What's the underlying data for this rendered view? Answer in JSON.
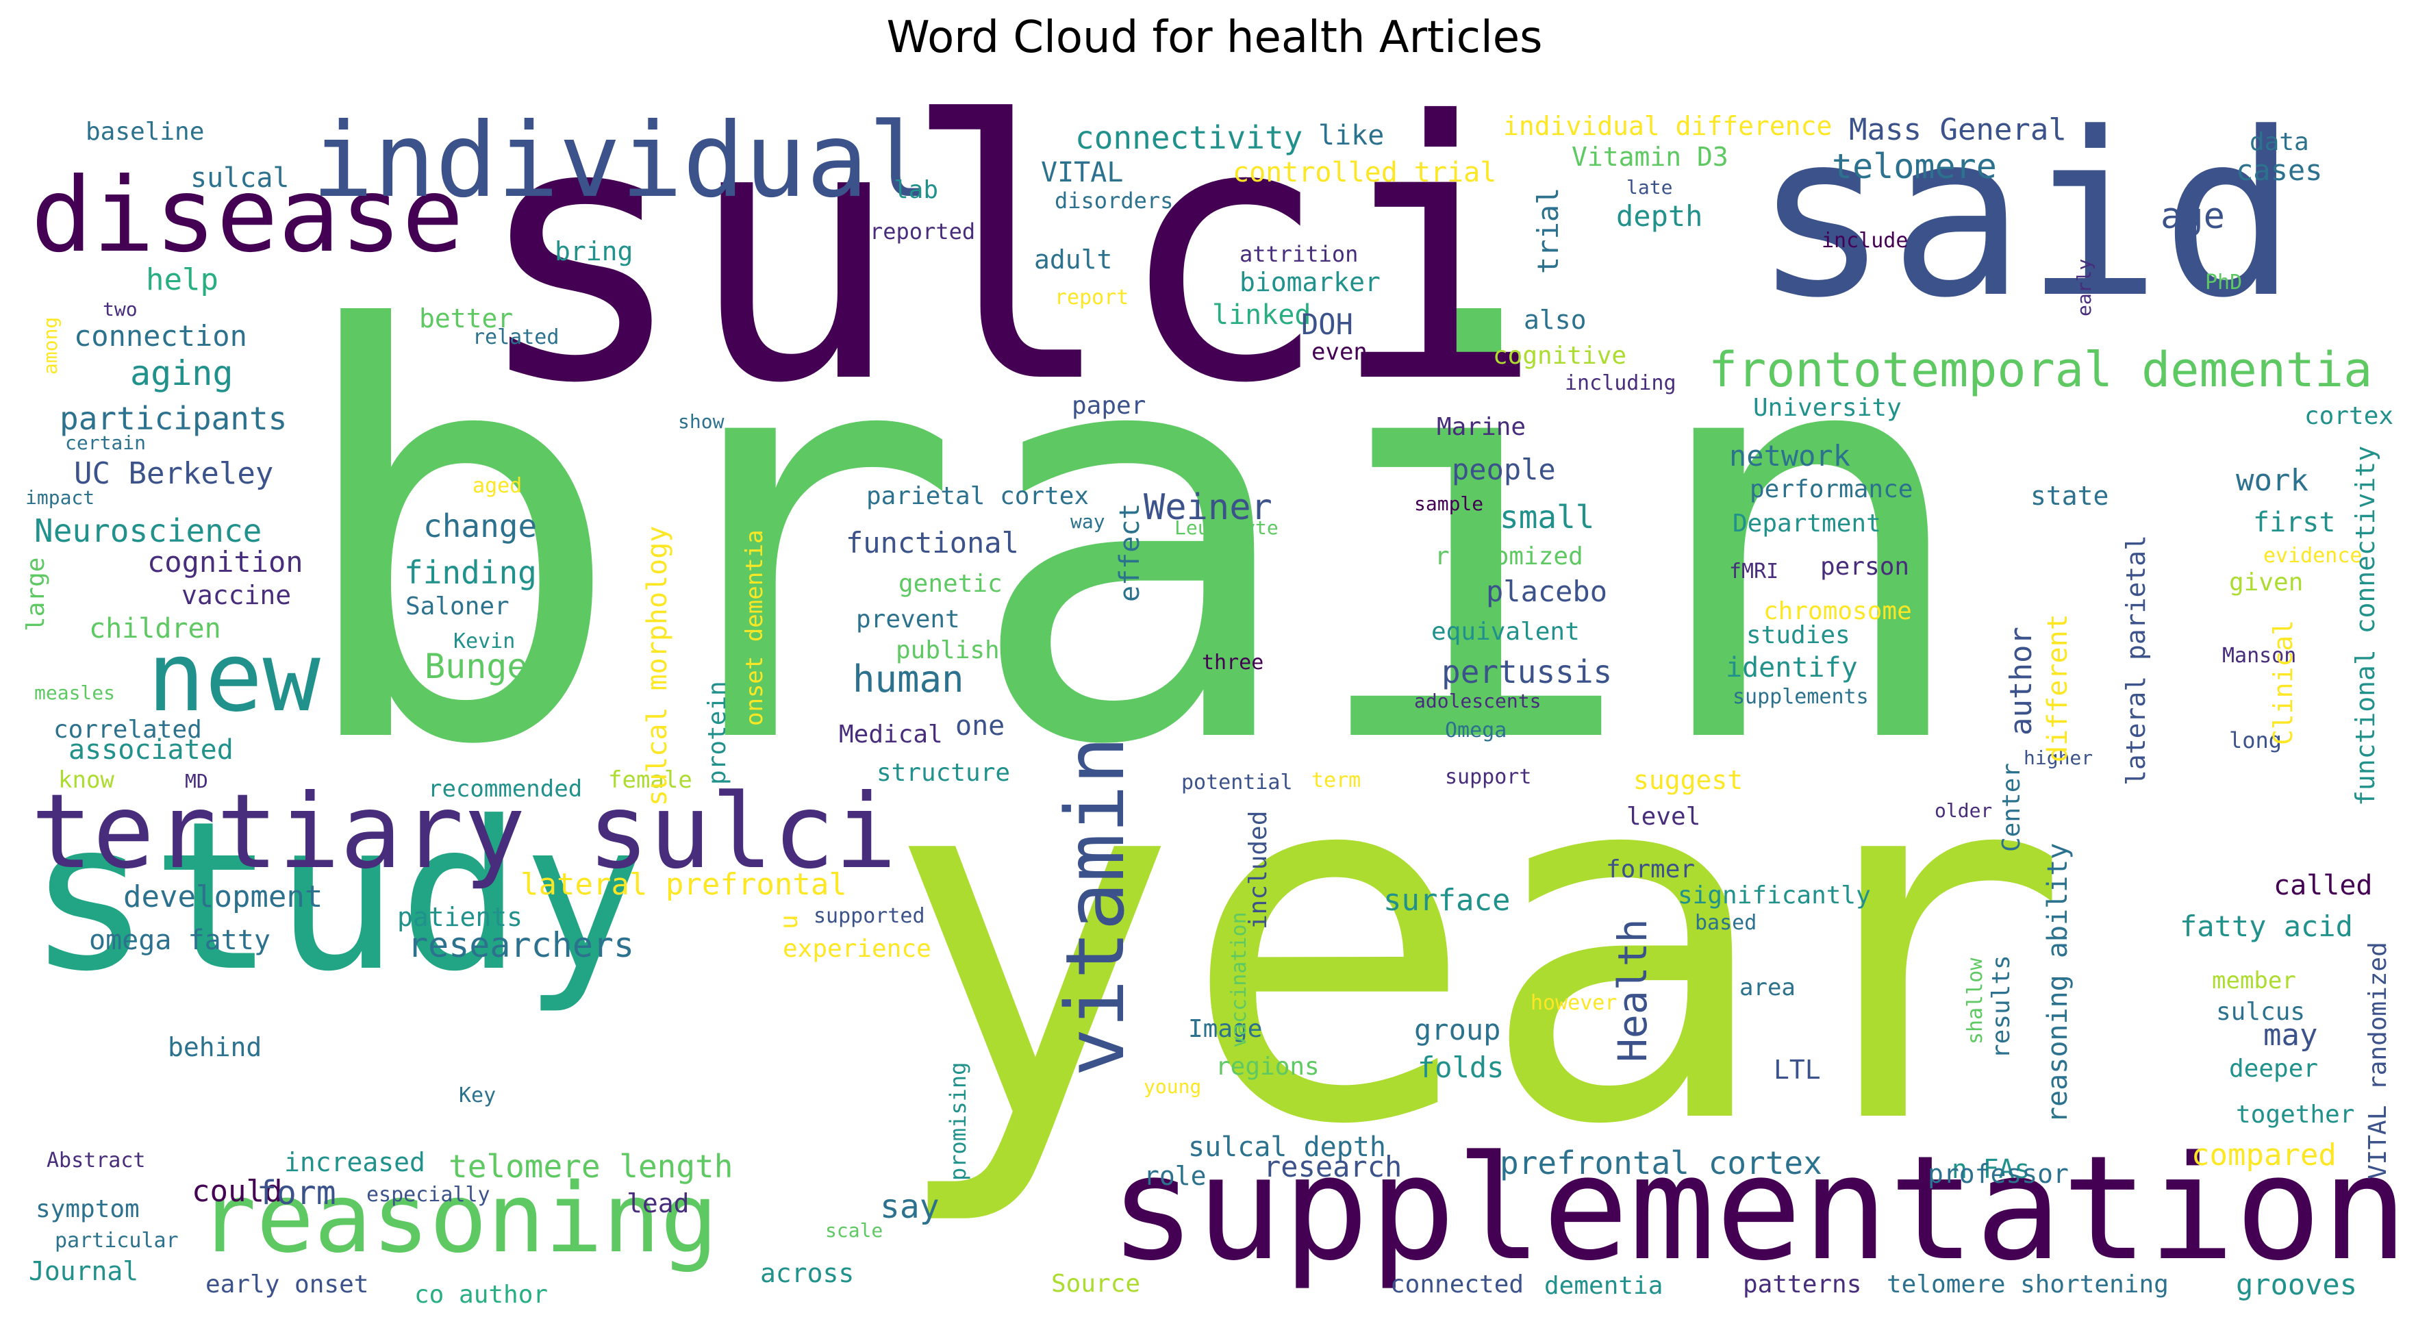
{
  "title": "Word Cloud for health Articles",
  "palette": {
    "purple": "#440154",
    "indigo": "#472d7b",
    "blue": "#3b528b",
    "steel": "#2c728e",
    "teal": "#21918c",
    "green": "#28ae80",
    "lime": "#5ec962",
    "yellow_green": "#addc30",
    "yellow": "#fde725"
  },
  "words": [
    {
      "text": "brain",
      "color": "#5ec962",
      "rotate": false
    },
    {
      "text": "year",
      "color": "#addc30",
      "rotate": false
    },
    {
      "text": "sulci",
      "color": "#440154",
      "rotate": false
    },
    {
      "text": "said",
      "color": "#3b528b",
      "rotate": false
    },
    {
      "text": "study",
      "color": "#21a585",
      "rotate": false
    },
    {
      "text": "supplementation",
      "color": "#440154",
      "rotate": false
    },
    {
      "text": "tertiary sulci",
      "color": "#472d7b",
      "rotate": false
    },
    {
      "text": "disease",
      "color": "#440154",
      "rotate": false
    },
    {
      "text": "individual",
      "color": "#3b528b",
      "rotate": false
    },
    {
      "text": "new",
      "color": "#21918c",
      "rotate": false
    },
    {
      "text": "reasoning",
      "color": "#5ec962",
      "rotate": false
    },
    {
      "text": "vitamin",
      "color": "#3b528b",
      "rotate": true
    },
    {
      "text": "frontotemporal dementia",
      "color": "#5ec962",
      "rotate": false
    },
    {
      "text": "connectivity",
      "color": "#21918c",
      "rotate": false
    },
    {
      "text": "like",
      "color": "#2c728e",
      "rotate": false
    },
    {
      "text": "individual difference",
      "color": "#fde725",
      "rotate": false
    },
    {
      "text": "Mass General",
      "color": "#3b528b",
      "rotate": false
    },
    {
      "text": "data",
      "color": "#2c728e",
      "rotate": false
    },
    {
      "text": "baseline",
      "color": "#2c728e",
      "rotate": false
    },
    {
      "text": "sulcal",
      "color": "#2c728e",
      "rotate": false
    },
    {
      "text": "VITAL",
      "color": "#2c728e",
      "rotate": false
    },
    {
      "text": "controlled trial",
      "color": "#fde725",
      "rotate": false
    },
    {
      "text": "lab",
      "color": "#21918c",
      "rotate": false
    },
    {
      "text": "disorders",
      "color": "#2c728e",
      "rotate": false
    },
    {
      "text": "late",
      "color": "#3b528b",
      "rotate": false
    },
    {
      "text": "cases",
      "color": "#2c728e",
      "rotate": false
    },
    {
      "text": "telomere",
      "color": "#2c728e",
      "rotate": false
    },
    {
      "text": "Vitamin D3",
      "color": "#5ec962",
      "rotate": false
    },
    {
      "text": "depth",
      "color": "#21918c",
      "rotate": false
    },
    {
      "text": "age",
      "color": "#3b528b",
      "rotate": false
    },
    {
      "text": "reported",
      "color": "#472d7b",
      "rotate": false
    },
    {
      "text": "include",
      "color": "#440154",
      "rotate": false
    },
    {
      "text": "bring",
      "color": "#21918c",
      "rotate": false
    },
    {
      "text": "adult",
      "color": "#2c728e",
      "rotate": false
    },
    {
      "text": "attrition",
      "color": "#472d7b",
      "rotate": false
    },
    {
      "text": "report",
      "color": "#fde725",
      "rotate": false
    },
    {
      "text": "PhD",
      "color": "#5ec962",
      "rotate": false
    },
    {
      "text": "two",
      "color": "#472d7b",
      "rotate": false
    },
    {
      "text": "help",
      "color": "#28ae80",
      "rotate": false
    },
    {
      "text": "biomarker",
      "color": "#21918c",
      "rotate": false
    },
    {
      "text": "better",
      "color": "#5ec962",
      "rotate": false
    },
    {
      "text": "linked",
      "color": "#28ae80",
      "rotate": false
    },
    {
      "text": "DOH",
      "color": "#3b528b",
      "rotate": false
    },
    {
      "text": "also",
      "color": "#2c728e",
      "rotate": false
    },
    {
      "text": "connection",
      "color": "#2c728e",
      "rotate": false
    },
    {
      "text": "related",
      "color": "#2c728e",
      "rotate": false
    },
    {
      "text": "even",
      "color": "#440154",
      "rotate": false
    },
    {
      "text": "cognitive",
      "color": "#addc30",
      "rotate": false
    },
    {
      "text": "including",
      "color": "#472d7b",
      "rotate": false
    },
    {
      "text": "aging",
      "color": "#21918c",
      "rotate": false
    },
    {
      "text": "participants",
      "color": "#2c728e",
      "rotate": false
    },
    {
      "text": "paper",
      "color": "#3b528b",
      "rotate": false
    },
    {
      "text": "University",
      "color": "#21918c",
      "rotate": false
    },
    {
      "text": "cortex",
      "color": "#21918c",
      "rotate": false
    },
    {
      "text": "certain",
      "color": "#2c728e",
      "rotate": false
    },
    {
      "text": "show",
      "color": "#2c728e",
      "rotate": false
    },
    {
      "text": "Marine",
      "color": "#472d7b",
      "rotate": false
    },
    {
      "text": "network",
      "color": "#2c728e",
      "rotate": false
    },
    {
      "text": "UC Berkeley",
      "color": "#3b528b",
      "rotate": false
    },
    {
      "text": "aged",
      "color": "#fde725",
      "rotate": false
    },
    {
      "text": "people",
      "color": "#3b528b",
      "rotate": false
    },
    {
      "text": "performance",
      "color": "#2c728e",
      "rotate": false
    },
    {
      "text": "work",
      "color": "#2c728e",
      "rotate": false
    },
    {
      "text": "impact",
      "color": "#2c728e",
      "rotate": false
    },
    {
      "text": "parietal cortex",
      "color": "#2c728e",
      "rotate": false
    },
    {
      "text": "Weiner",
      "color": "#3b528b",
      "rotate": false
    },
    {
      "text": "sample",
      "color": "#440154",
      "rotate": false
    },
    {
      "text": "state",
      "color": "#2c728e",
      "rotate": false
    },
    {
      "text": "Neuroscience",
      "color": "#21918c",
      "rotate": false
    },
    {
      "text": "change",
      "color": "#2c728e",
      "rotate": false
    },
    {
      "text": "small",
      "color": "#21918c",
      "rotate": false
    },
    {
      "text": "Department",
      "color": "#21918c",
      "rotate": false
    },
    {
      "text": "first",
      "color": "#21918c",
      "rotate": false
    },
    {
      "text": "way",
      "color": "#2c728e",
      "rotate": false
    },
    {
      "text": "Leukocyte",
      "color": "#5ec962",
      "rotate": false
    },
    {
      "text": "cognition",
      "color": "#472d7b",
      "rotate": false
    },
    {
      "text": "functional",
      "color": "#3b528b",
      "rotate": false
    },
    {
      "text": "randomized",
      "color": "#5ec962",
      "rotate": false
    },
    {
      "text": "finding",
      "color": "#21918c",
      "rotate": false
    },
    {
      "text": "fMRI",
      "color": "#472d7b",
      "rotate": false
    },
    {
      "text": "person",
      "color": "#472d7b",
      "rotate": false
    },
    {
      "text": "evidence",
      "color": "#fde725",
      "rotate": false
    },
    {
      "text": "vaccine",
      "color": "#472d7b",
      "rotate": false
    },
    {
      "text": "genetic",
      "color": "#5ec962",
      "rotate": false
    },
    {
      "text": "placebo",
      "color": "#3b528b",
      "rotate": false
    },
    {
      "text": "chromosome",
      "color": "#fde725",
      "rotate": false
    },
    {
      "text": "given",
      "color": "#addc30",
      "rotate": false
    },
    {
      "text": "Saloner",
      "color": "#2c728e",
      "rotate": false
    },
    {
      "text": "children",
      "color": "#5ec962",
      "rotate": false
    },
    {
      "text": "prevent",
      "color": "#2c728e",
      "rotate": false
    },
    {
      "text": "equivalent",
      "color": "#21918c",
      "rotate": false
    },
    {
      "text": "studies",
      "color": "#21918c",
      "rotate": false
    },
    {
      "text": "Kevin",
      "color": "#21918c",
      "rotate": false
    },
    {
      "text": "published",
      "color": "#5ec962",
      "rotate": false
    },
    {
      "text": "three",
      "color": "#440154",
      "rotate": false
    },
    {
      "text": "identify",
      "color": "#21918c",
      "rotate": false
    },
    {
      "text": "Manson",
      "color": "#472d7b",
      "rotate": false
    },
    {
      "text": "Bunge",
      "color": "#5ec962",
      "rotate": false
    },
    {
      "text": "human",
      "color": "#2c728e",
      "rotate": false
    },
    {
      "text": "pertussis",
      "color": "#3b528b",
      "rotate": false
    },
    {
      "text": "measles",
      "color": "#5ec962",
      "rotate": false
    },
    {
      "text": "adolescents",
      "color": "#472d7b",
      "rotate": false
    },
    {
      "text": "supplements",
      "color": "#2c728e",
      "rotate": false
    },
    {
      "text": "correlated",
      "color": "#2c728e",
      "rotate": false
    },
    {
      "text": "one",
      "color": "#3b528b",
      "rotate": false
    },
    {
      "text": "Medical",
      "color": "#472d7b",
      "rotate": false
    },
    {
      "text": "Omega",
      "color": "#2c728e",
      "rotate": false
    },
    {
      "text": "long",
      "color": "#3b528b",
      "rotate": false
    },
    {
      "text": "associated",
      "color": "#21918c",
      "rotate": false
    },
    {
      "text": "higher",
      "color": "#3b528b",
      "rotate": false
    },
    {
      "text": "know",
      "color": "#addc30",
      "rotate": false
    },
    {
      "text": "MD",
      "color": "#472d7b",
      "rotate": false
    },
    {
      "text": "female",
      "color": "#addc30",
      "rotate": false
    },
    {
      "text": "structure",
      "color": "#21918c",
      "rotate": false
    },
    {
      "text": "potential",
      "color": "#3b528b",
      "rotate": false
    },
    {
      "text": "term",
      "color": "#fde725",
      "rotate": false
    },
    {
      "text": "support",
      "color": "#472d7b",
      "rotate": false
    },
    {
      "text": "suggest",
      "color": "#fde725",
      "rotate": false
    },
    {
      "text": "recommended",
      "color": "#21918c",
      "rotate": false
    },
    {
      "text": "older",
      "color": "#472d7b",
      "rotate": false
    },
    {
      "text": "level",
      "color": "#472d7b",
      "rotate": false
    },
    {
      "text": "development",
      "color": "#2c728e",
      "rotate": false
    },
    {
      "text": "lateral prefrontal",
      "color": "#fde725",
      "rotate": false
    },
    {
      "text": "former",
      "color": "#3b528b",
      "rotate": false
    },
    {
      "text": "called",
      "color": "#440154",
      "rotate": false
    },
    {
      "text": "surface",
      "color": "#21918c",
      "rotate": false
    },
    {
      "text": "significantly",
      "color": "#21918c",
      "rotate": false
    },
    {
      "text": "patients",
      "color": "#21918c",
      "rotate": false
    },
    {
      "text": "supported",
      "color": "#3b528b",
      "rotate": false
    },
    {
      "text": "based",
      "color": "#2c728e",
      "rotate": false
    },
    {
      "text": "fatty acid",
      "color": "#21918c",
      "rotate": false
    },
    {
      "text": "omega fatty",
      "color": "#2c728e",
      "rotate": false
    },
    {
      "text": "researchers",
      "color": "#2c728e",
      "rotate": false
    },
    {
      "text": "experience",
      "color": "#fde725",
      "rotate": false
    },
    {
      "text": "member",
      "color": "#addc30",
      "rotate": false
    },
    {
      "text": "area",
      "color": "#2c728e",
      "rotate": false
    },
    {
      "text": "however",
      "color": "#fde725",
      "rotate": false
    },
    {
      "text": "sulcus",
      "color": "#2c728e",
      "rotate": false
    },
    {
      "text": "behind",
      "color": "#2c728e",
      "rotate": false
    },
    {
      "text": "group",
      "color": "#2c728e",
      "rotate": false
    },
    {
      "text": "Image",
      "color": "#2c728e",
      "rotate": false
    },
    {
      "text": "may",
      "color": "#3b528b",
      "rotate": false
    },
    {
      "text": "regions",
      "color": "#5ec962",
      "rotate": false
    },
    {
      "text": "folds",
      "color": "#21918c",
      "rotate": false
    },
    {
      "text": "young",
      "color": "#fde725",
      "rotate": false
    },
    {
      "text": "LTL",
      "color": "#3b528b",
      "rotate": false
    },
    {
      "text": "deeper",
      "color": "#21918c",
      "rotate": false
    },
    {
      "text": "Key",
      "color": "#2c728e",
      "rotate": false
    },
    {
      "text": "together",
      "color": "#21918c",
      "rotate": false
    },
    {
      "text": "n FAs",
      "color": "#21918c",
      "rotate": false
    },
    {
      "text": "sulcal depth",
      "color": "#2c728e",
      "rotate": false
    },
    {
      "text": "Abstract",
      "color": "#472d7b",
      "rotate": false
    },
    {
      "text": "increased",
      "color": "#21918c",
      "rotate": false
    },
    {
      "text": "telomere length",
      "color": "#5ec962",
      "rotate": false
    },
    {
      "text": "research",
      "color": "#3b528b",
      "rotate": false
    },
    {
      "text": "prefrontal cortex",
      "color": "#2c728e",
      "rotate": false
    },
    {
      "text": "compared",
      "color": "#fde725",
      "rotate": false
    },
    {
      "text": "role",
      "color": "#2c728e",
      "rotate": false
    },
    {
      "text": "professor",
      "color": "#2c728e",
      "rotate": false
    },
    {
      "text": "could",
      "color": "#440154",
      "rotate": false
    },
    {
      "text": "form",
      "color": "#3b528b",
      "rotate": false
    },
    {
      "text": "especially",
      "color": "#3b528b",
      "rotate": false
    },
    {
      "text": "symptom",
      "color": "#2c728e",
      "rotate": false
    },
    {
      "text": "say",
      "color": "#2c728e",
      "rotate": false
    },
    {
      "text": "lead",
      "color": "#472d7b",
      "rotate": false
    },
    {
      "text": "particular",
      "color": "#2c728e",
      "rotate": false
    },
    {
      "text": "scale",
      "color": "#5ec962",
      "rotate": false
    },
    {
      "text": "Journal",
      "color": "#21918c",
      "rotate": false
    },
    {
      "text": "across",
      "color": "#21918c",
      "rotate": false
    },
    {
      "text": "early onset",
      "color": "#3b528b",
      "rotate": false
    },
    {
      "text": "co author",
      "color": "#28ae80",
      "rotate": false
    },
    {
      "text": "Source",
      "color": "#addc30",
      "rotate": false
    },
    {
      "text": "connected",
      "color": "#3b528b",
      "rotate": false
    },
    {
      "text": "dementia",
      "color": "#21918c",
      "rotate": false
    },
    {
      "text": "patterns",
      "color": "#472d7b",
      "rotate": false
    },
    {
      "text": "telomere shortening",
      "color": "#2c728e",
      "rotate": false
    },
    {
      "text": "grooves",
      "color": "#21918c",
      "rotate": false
    },
    {
      "text": "among",
      "color": "#fde725",
      "rotate": true
    },
    {
      "text": "large",
      "color": "#5ec962",
      "rotate": true
    },
    {
      "text": "sulcal morphology",
      "color": "#fde725",
      "rotate": true
    },
    {
      "text": "onset dementia",
      "color": "#fde725",
      "rotate": true
    },
    {
      "text": "protein",
      "color": "#21918c",
      "rotate": true
    },
    {
      "text": "u",
      "color": "#fde725",
      "rotate": true
    },
    {
      "text": "effect",
      "color": "#2c728e",
      "rotate": true
    },
    {
      "text": "trial",
      "color": "#2c728e",
      "rotate": true
    },
    {
      "text": "early",
      "color": "#472d7b",
      "rotate": true
    },
    {
      "text": "Health",
      "color": "#3b528b",
      "rotate": true
    },
    {
      "text": "included",
      "color": "#3b528b",
      "rotate": true
    },
    {
      "text": "vaccination",
      "color": "#5ec962",
      "rotate": true
    },
    {
      "text": "promising",
      "color": "#21918c",
      "rotate": true
    },
    {
      "text": "author",
      "color": "#3b528b",
      "rotate": true
    },
    {
      "text": "different",
      "color": "#fde725",
      "rotate": true
    },
    {
      "text": "Center",
      "color": "#2c728e",
      "rotate": true
    },
    {
      "text": "reasoning ability",
      "color": "#2c728e",
      "rotate": true
    },
    {
      "text": "results",
      "color": "#2c728e",
      "rotate": true
    },
    {
      "text": "shallow",
      "color": "#5ec962",
      "rotate": true
    },
    {
      "text": "lateral parietal",
      "color": "#3b528b",
      "rotate": true
    },
    {
      "text": "Clinical",
      "color": "#fde725",
      "rotate": true
    },
    {
      "text": "functional connectivity",
      "color": "#21918c",
      "rotate": true
    },
    {
      "text": "VITAL randomized",
      "color": "#3b528b",
      "rotate": true
    }
  ]
}
